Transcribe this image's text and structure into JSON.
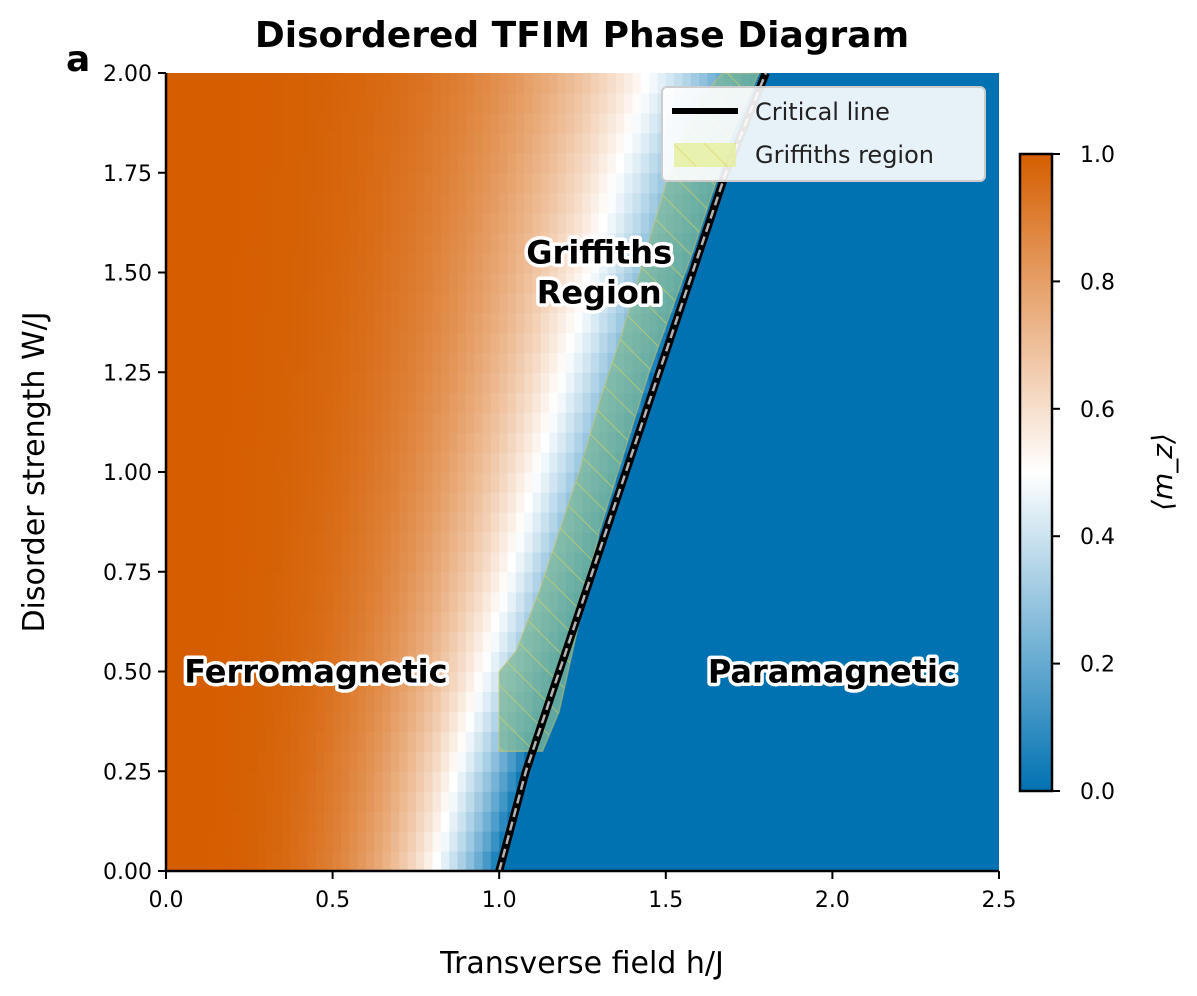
{
  "chart_data": {
    "type": "heatmap",
    "title": "Disordered TFIM Phase Diagram",
    "panel_label": "a",
    "xlabel": "Transverse field h/J",
    "ylabel": "Disorder strength W/J",
    "xlim": [
      0.0,
      2.5
    ],
    "ylim": [
      0.0,
      2.0
    ],
    "xticks": [
      "0.0",
      "0.5",
      "1.0",
      "1.5",
      "2.0",
      "2.5"
    ],
    "xtick_values": [
      0.0,
      0.5,
      1.0,
      1.5,
      2.0,
      2.5
    ],
    "yticks": [
      "0.00",
      "0.25",
      "0.50",
      "0.75",
      "1.00",
      "1.25",
      "1.50",
      "1.75",
      "2.00"
    ],
    "ytick_values": [
      0.0,
      0.25,
      0.5,
      0.75,
      1.0,
      1.25,
      1.5,
      1.75,
      2.0
    ],
    "colorbar": {
      "label": "⟨m_z⟩",
      "range": [
        0.0,
        1.0
      ],
      "ticks": [
        "0.0",
        "0.2",
        "0.4",
        "0.6",
        "0.8",
        "1.0"
      ],
      "tick_values": [
        0.0,
        0.2,
        0.4,
        0.6,
        0.8,
        1.0
      ],
      "colors": [
        "#0072b2",
        "#ffffff",
        "#d55e00"
      ]
    },
    "critical_line": {
      "name": "Critical line",
      "h": [
        1.0,
        1.08,
        1.18,
        1.28,
        1.38,
        1.48,
        1.58,
        1.68,
        1.8
      ],
      "W": [
        0.0,
        0.25,
        0.5,
        0.75,
        1.0,
        1.25,
        1.5,
        1.75,
        2.0
      ]
    },
    "griffiths_region": {
      "name": "Griffiths region",
      "upper_h": [
        1.0,
        1.05,
        1.12,
        1.18,
        1.24,
        1.31,
        1.37,
        1.44,
        1.5,
        1.56,
        1.62,
        1.67
      ],
      "upper_W": [
        0.5,
        0.55,
        0.7,
        0.85,
        1.0,
        1.2,
        1.35,
        1.55,
        1.72,
        1.85,
        1.95,
        2.0
      ],
      "lower_h": [
        1.0,
        1.13,
        1.18,
        1.3,
        1.45,
        1.58,
        1.7,
        1.78
      ],
      "lower_W": [
        0.3,
        0.3,
        0.4,
        0.85,
        1.25,
        1.55,
        1.85,
        2.0
      ]
    },
    "annotations": [
      {
        "text": "Ferromagnetic",
        "h": 0.45,
        "W": 0.5
      },
      {
        "text": "Paramagnetic",
        "h": 2.0,
        "W": 0.5
      },
      {
        "text": "Griffiths",
        "h": 1.3,
        "W": 1.55
      },
      {
        "text": "Region",
        "h": 1.3,
        "W": 1.45
      }
    ],
    "legend": {
      "position": "upper right",
      "entries": [
        "Critical line",
        "Griffiths region"
      ]
    }
  }
}
